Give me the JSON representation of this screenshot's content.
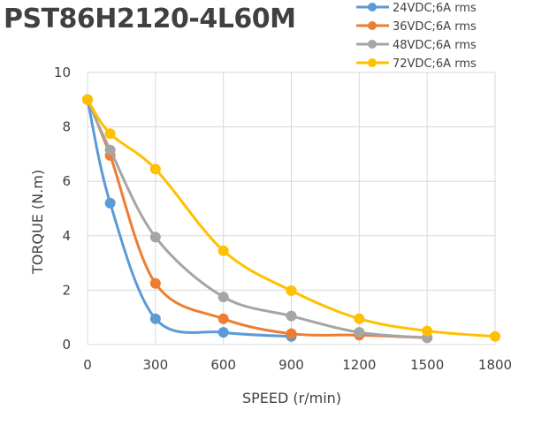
{
  "chart_data": {
    "type": "line",
    "title": "PST86H2120-4L60M",
    "xlabel": "SPEED (r/min)",
    "ylabel": "TORQUE (N.m)",
    "xlim": [
      0,
      1800
    ],
    "ylim": [
      0,
      10
    ],
    "xticks": [
      0,
      300,
      600,
      900,
      1200,
      1500,
      1800
    ],
    "yticks": [
      0,
      2,
      4,
      6,
      8,
      10
    ],
    "grid": true,
    "smooth": true,
    "legend_position": "top-right",
    "series": [
      {
        "name": "24VDC;6A rms",
        "color": "#5b9bd5",
        "x": [
          0,
          100,
          300,
          600,
          900
        ],
        "y": [
          9.0,
          5.2,
          0.95,
          0.45,
          0.3
        ]
      },
      {
        "name": "36VDC;6A rms",
        "color": "#ed7d31",
        "x": [
          0,
          100,
          300,
          600,
          900,
          1200,
          1500
        ],
        "y": [
          9.0,
          6.95,
          2.25,
          0.95,
          0.4,
          0.35,
          0.25
        ]
      },
      {
        "name": "48VDC;6A rms",
        "color": "#a5a5a5",
        "x": [
          0,
          100,
          300,
          600,
          900,
          1200,
          1500
        ],
        "y": [
          9.0,
          7.15,
          3.95,
          1.75,
          1.05,
          0.45,
          0.25
        ]
      },
      {
        "name": "72VDC;6A rms",
        "color": "#ffc000",
        "x": [
          0,
          100,
          300,
          600,
          900,
          1200,
          1500,
          1800
        ],
        "y": [
          9.0,
          7.75,
          6.45,
          3.45,
          1.98,
          0.95,
          0.5,
          0.3
        ]
      }
    ]
  }
}
